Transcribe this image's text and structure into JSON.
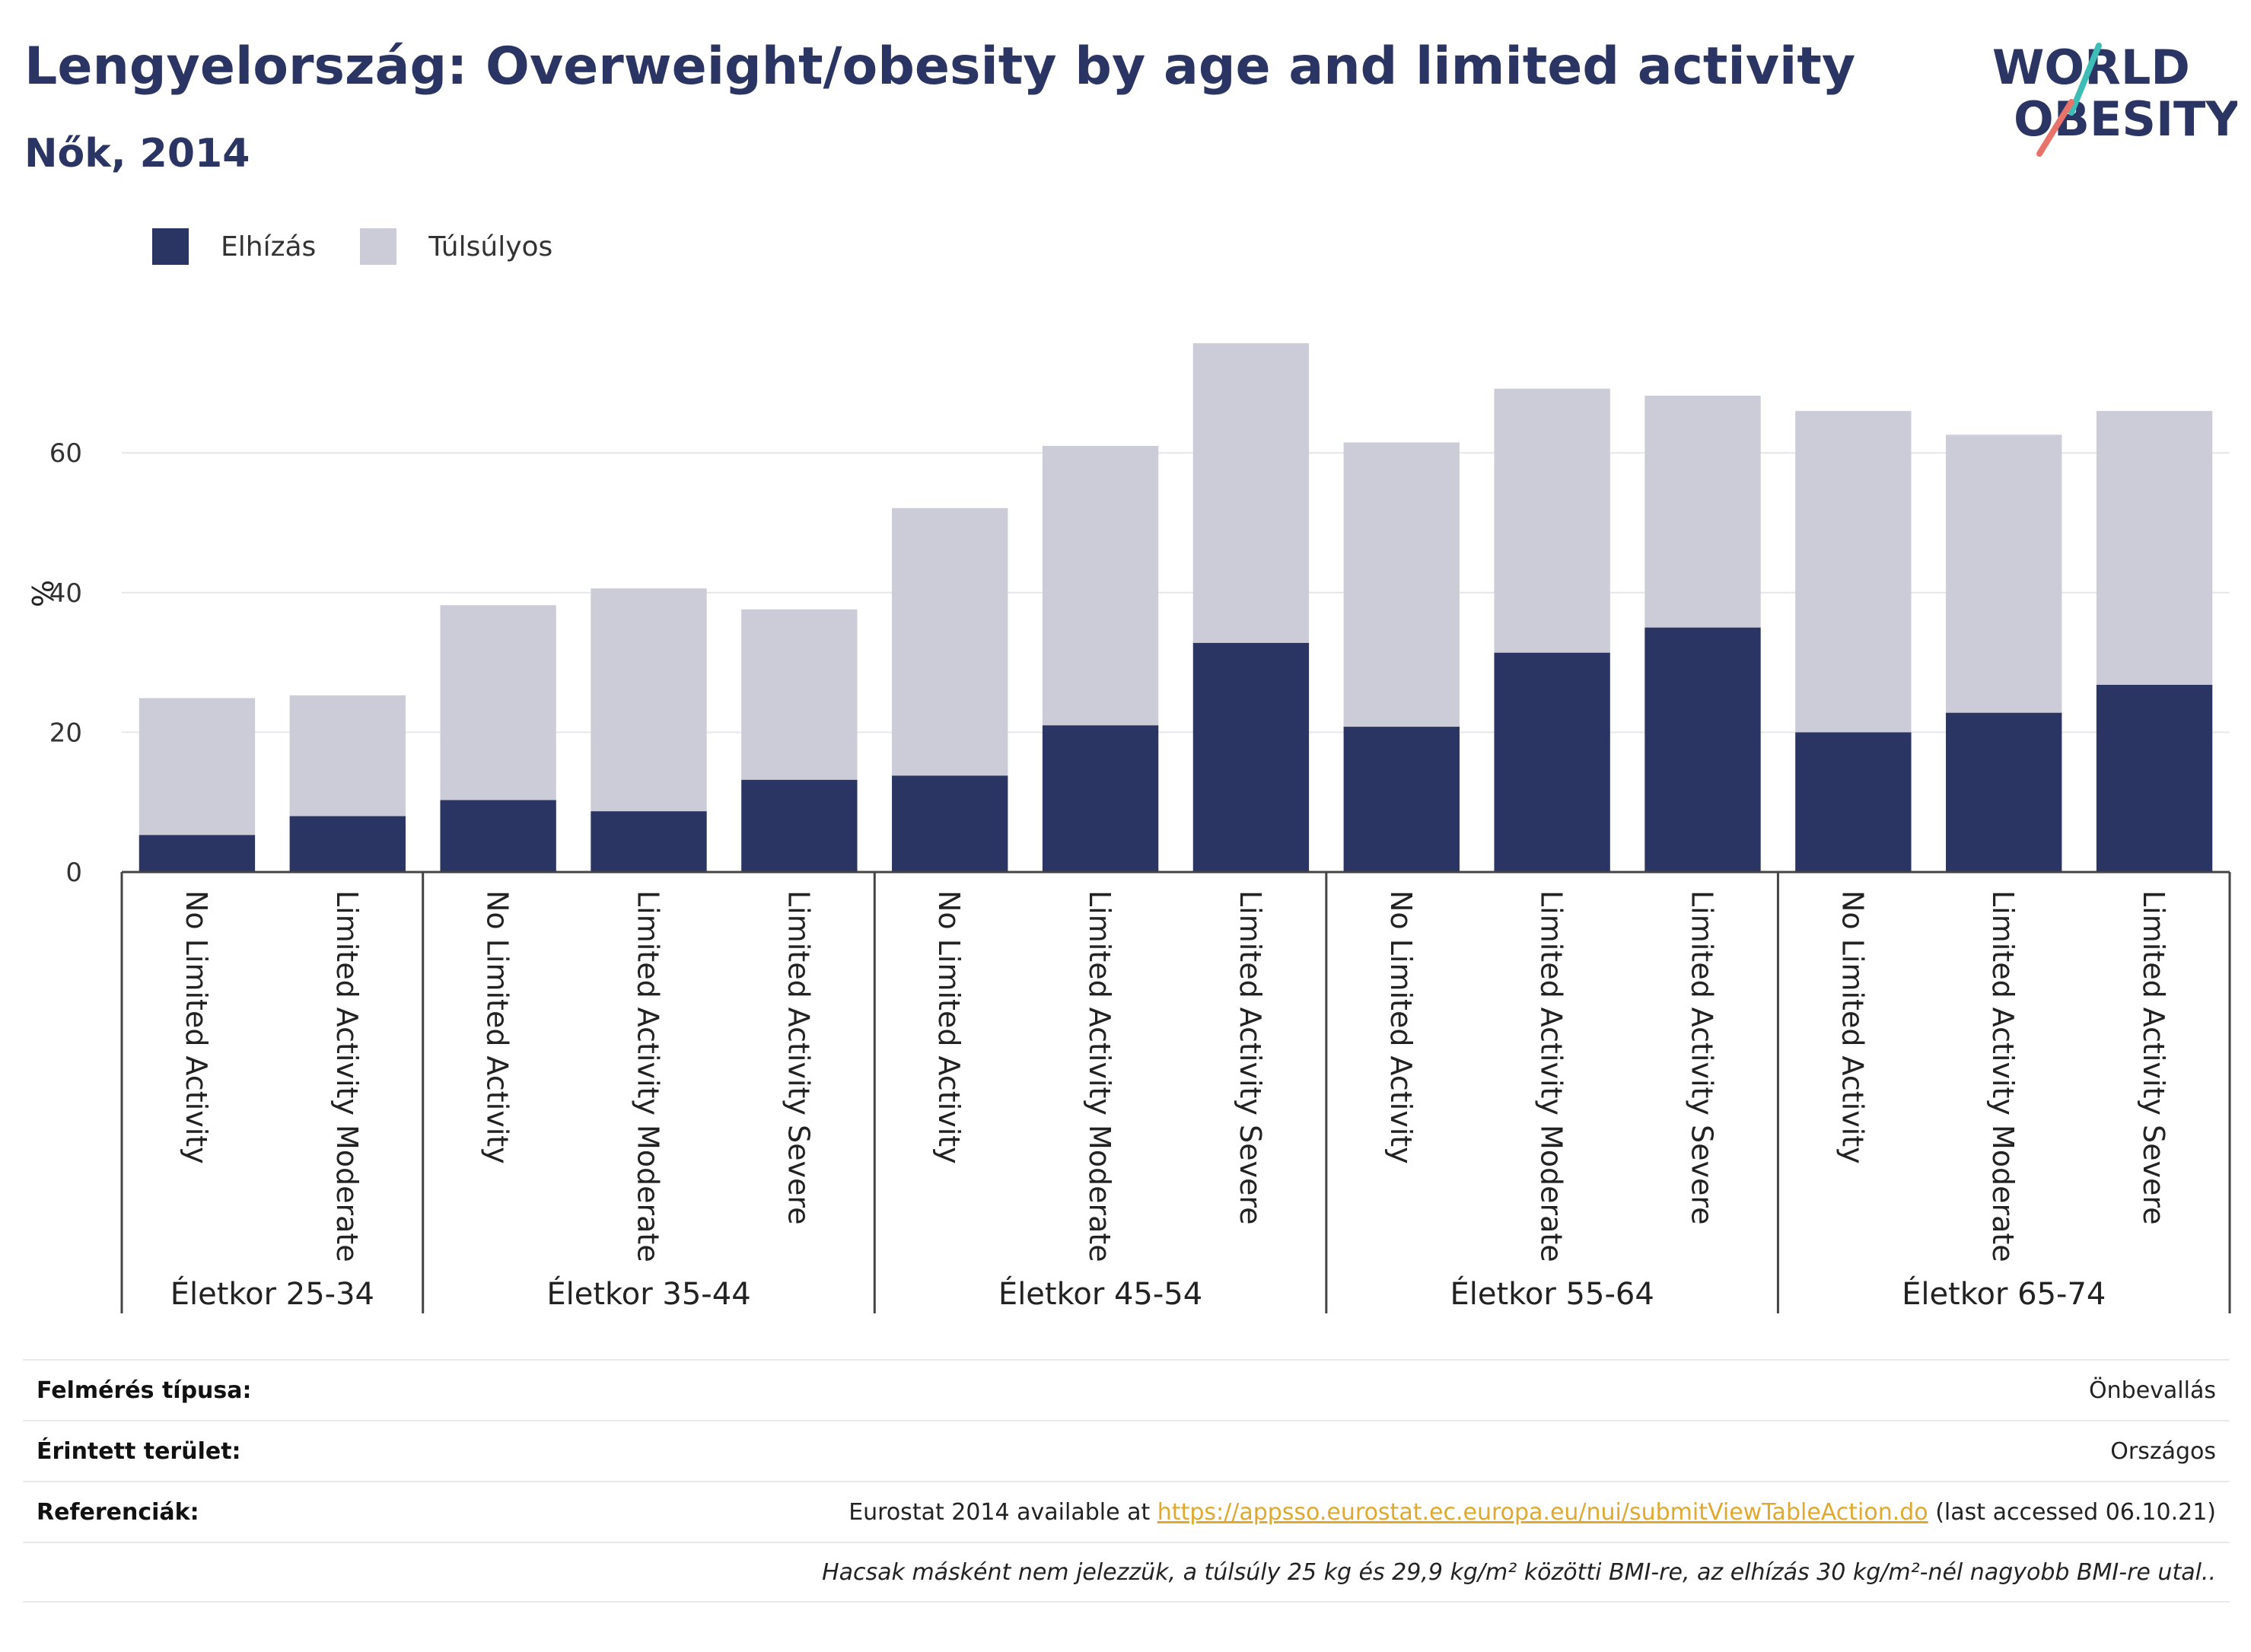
{
  "title": "Lengyelország: Overweight/obesity by age and limited activity",
  "subtitle": "Nők, 2014",
  "logo": {
    "line1": "WORLD",
    "line2": "OBESITY"
  },
  "colors": {
    "obesity": "#2b3563",
    "overweight": "#cbccd8",
    "title": "#2b3563",
    "link": "#e0a82e"
  },
  "chart_data": {
    "type": "bar",
    "stacked": true,
    "ylabel": "%",
    "ylim": [
      0,
      80
    ],
    "yticks": [
      0,
      20,
      40,
      60
    ],
    "grid": true,
    "legend_position": "top-left",
    "groups": [
      {
        "label": "Életkor 25-34",
        "categories": [
          "No Limited Activity",
          "Limited Activity Moderate"
        ]
      },
      {
        "label": "Életkor 35-44",
        "categories": [
          "No Limited Activity",
          "Limited Activity Moderate",
          "Limited Activity Severe"
        ]
      },
      {
        "label": "Életkor 45-54",
        "categories": [
          "No Limited Activity",
          "Limited Activity Moderate",
          "Limited Activity Severe"
        ]
      },
      {
        "label": "Életkor 55-64",
        "categories": [
          "No Limited Activity",
          "Limited Activity Moderate",
          "Limited Activity Severe"
        ]
      },
      {
        "label": "Életkor 65-74",
        "categories": [
          "No Limited Activity",
          "Limited Activity Moderate",
          "Limited Activity Severe"
        ]
      }
    ],
    "series": [
      {
        "name": "Elhízás",
        "values": [
          5.3,
          8.0,
          10.3,
          8.7,
          13.2,
          13.8,
          21.0,
          32.8,
          20.8,
          31.4,
          35.0,
          20.0,
          22.8,
          26.8
        ]
      },
      {
        "name": "Túlsúlyos",
        "values": [
          19.6,
          17.3,
          27.9,
          31.9,
          24.4,
          38.3,
          40.0,
          42.9,
          40.7,
          37.8,
          33.2,
          46.0,
          39.8,
          39.2
        ]
      }
    ]
  },
  "info": {
    "survey_type": {
      "label": "Felmérés típusa:",
      "value": "Önbevallás"
    },
    "area": {
      "label": "Érintett terület:",
      "value": "Országos"
    },
    "references": {
      "label": "Referenciák:",
      "prefix": "Eurostat 2014 available at",
      "url": "https://appsso.eurostat.ec.europa.eu/nui/submitViewTableAction.do",
      "suffix": "(last accessed 06.10.21)"
    },
    "note": "Hacsak másként nem jelezzük, a túlsúly 25 kg és 29,9 kg/m² közötti BMI-re, az elhízás 30 kg/m²-nél nagyobb BMI-re utal.."
  }
}
